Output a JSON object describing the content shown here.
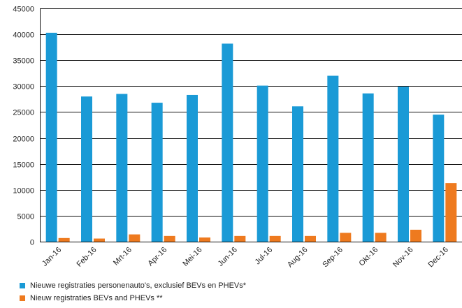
{
  "chart_data": {
    "type": "bar",
    "categories": [
      "Jan-16",
      "Feb-16",
      "Mrt-16",
      "Apr-16",
      "Mei-16",
      "Jun-16",
      "Jul-16",
      "Aug-16",
      "Sep-16",
      "Okt-16",
      "Nov-16",
      "Dec-16"
    ],
    "series": [
      {
        "name": "Nieuwe registraties personenauto's, exclusief BEVs en PHEVs*",
        "color": "#1a9ad6",
        "values": [
          40300,
          28000,
          28500,
          26800,
          28300,
          38200,
          30100,
          26100,
          32000,
          28600,
          29900,
          24500
        ]
      },
      {
        "name": "Nieuw registraties BEVs and PHEVs **",
        "color": "#ee7a1f",
        "values": [
          700,
          600,
          1400,
          1100,
          800,
          1100,
          1100,
          1100,
          1700,
          1700,
          2300,
          11300
        ]
      }
    ],
    "ylim": [
      0,
      45000
    ],
    "yticks": [
      0,
      5000,
      10000,
      15000,
      20000,
      25000,
      30000,
      35000,
      40000,
      45000
    ],
    "grid": true,
    "legend_position": "bottom-left"
  }
}
